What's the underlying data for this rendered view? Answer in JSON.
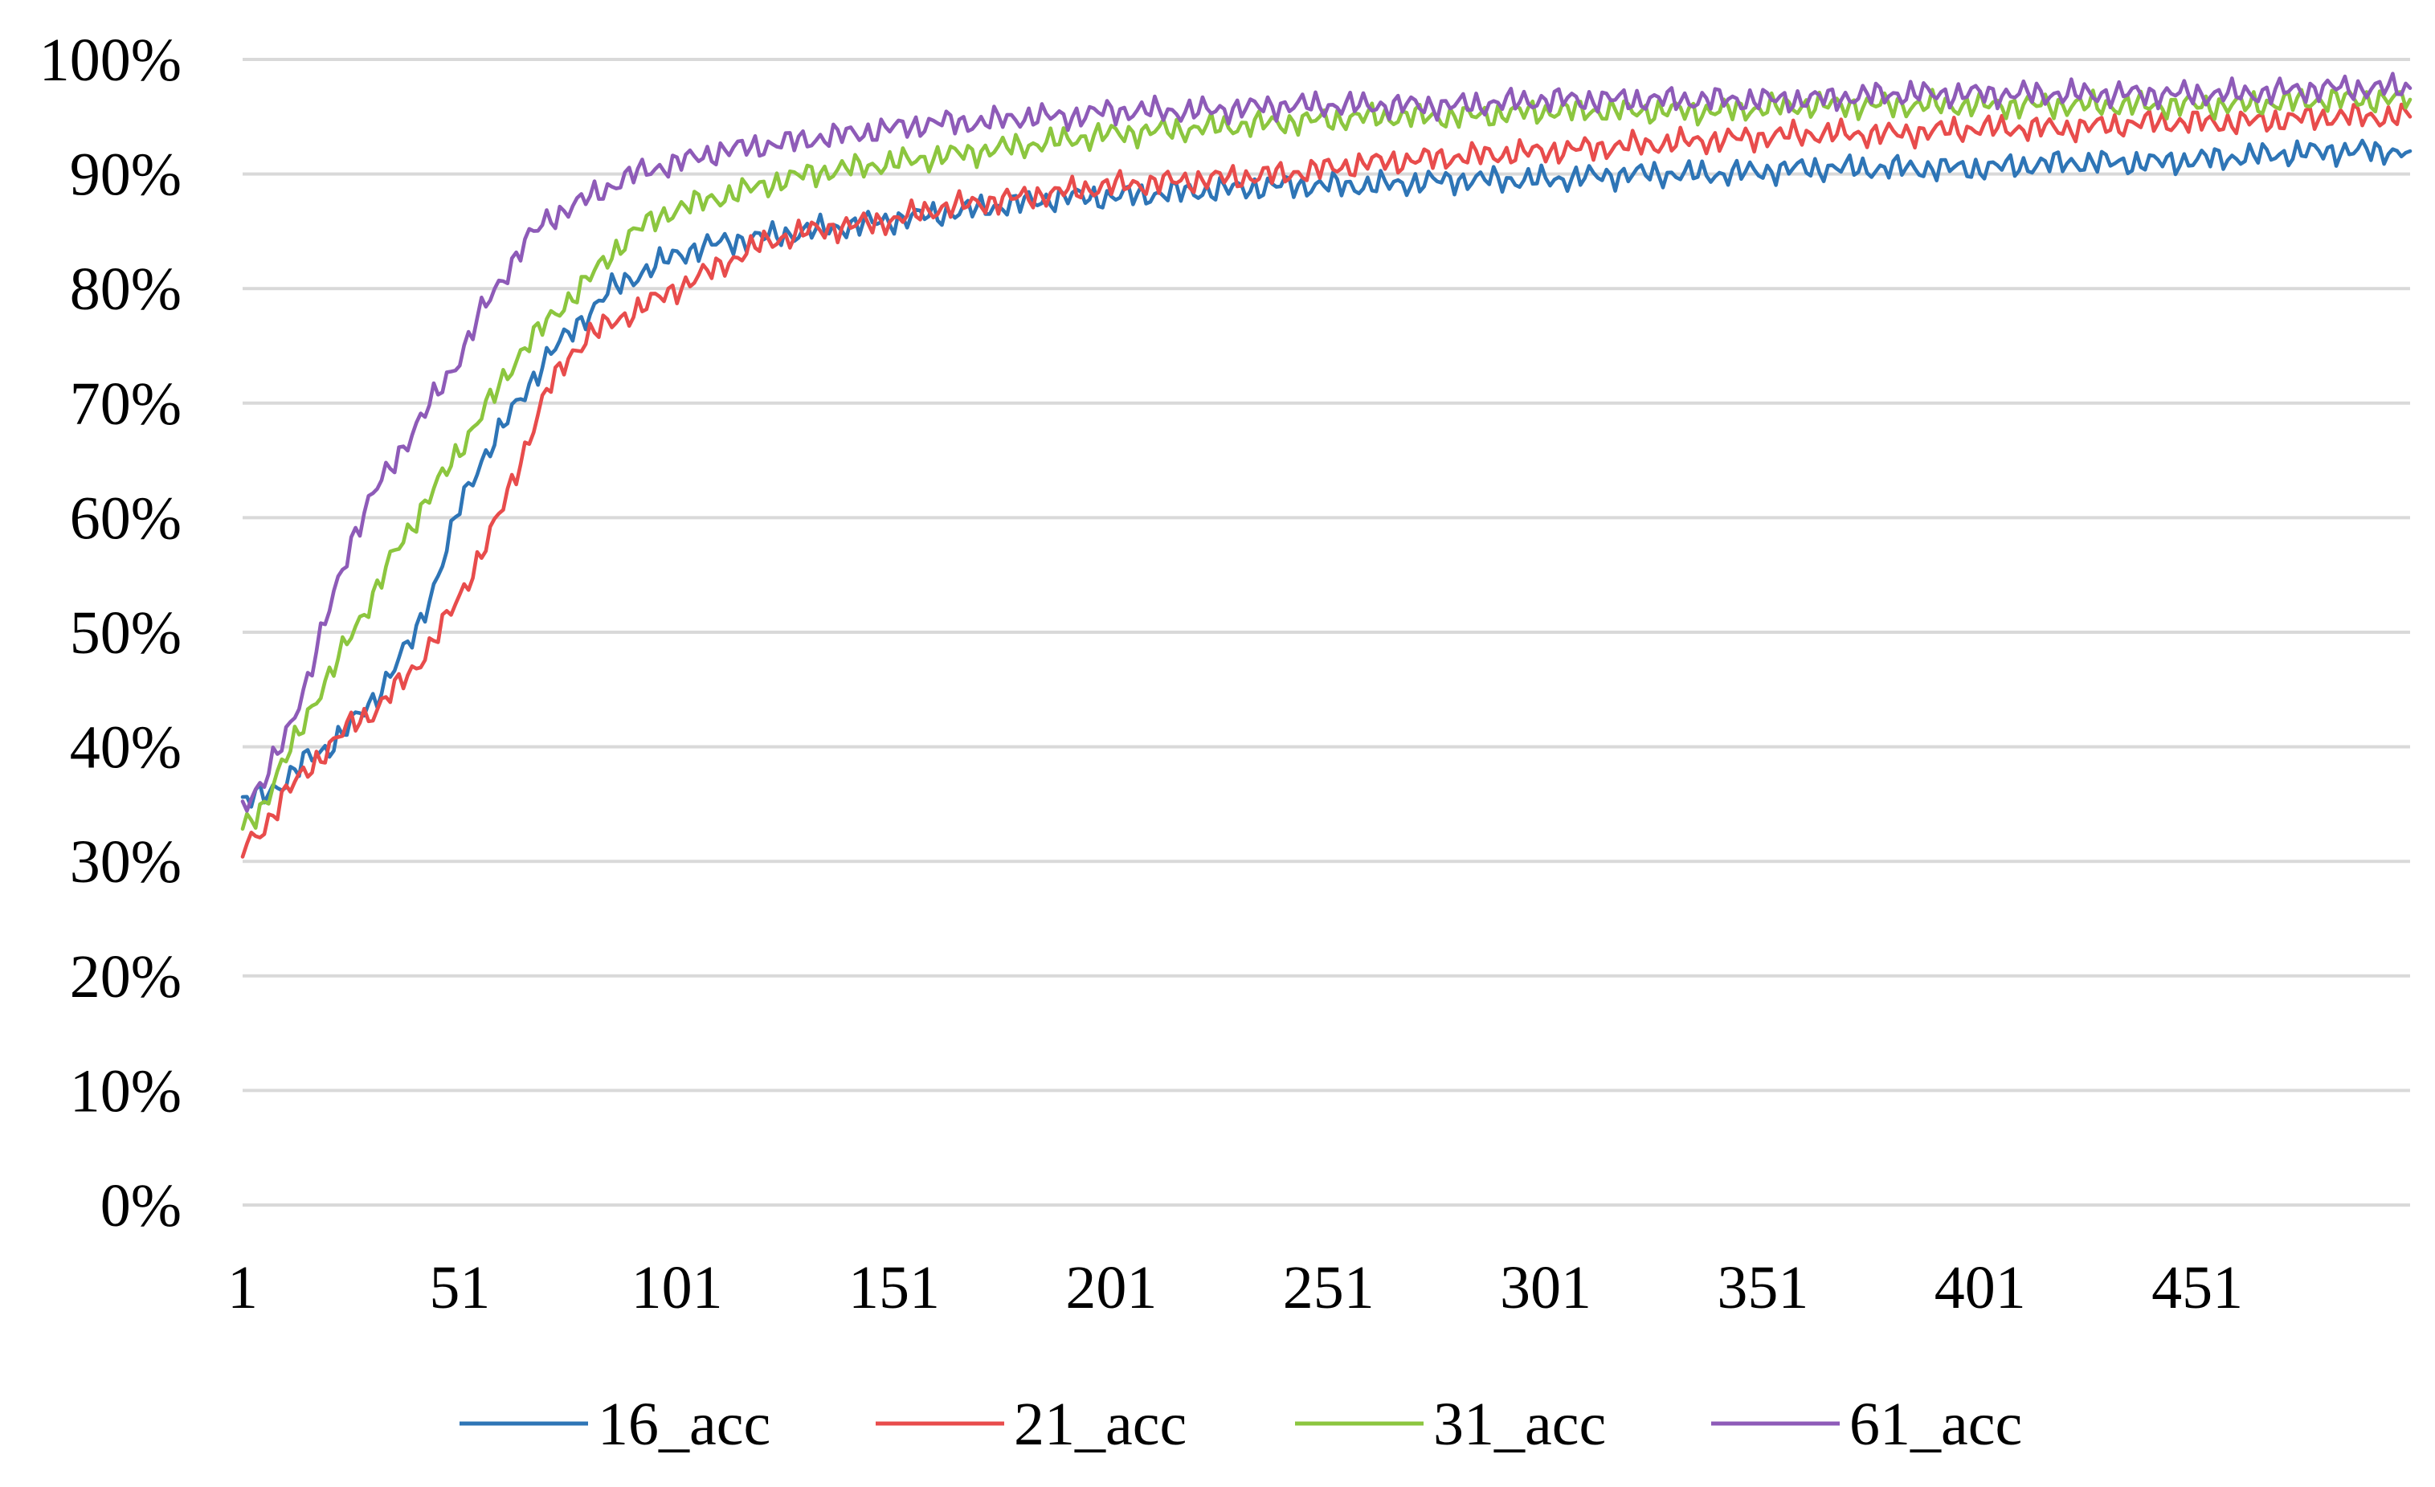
{
  "chart_data": {
    "type": "line",
    "title": "",
    "xlabel": "",
    "ylabel": "",
    "x_range": [
      1,
      500
    ],
    "x_ticks": [
      "1",
      "51",
      "101",
      "151",
      "201",
      "251",
      "301",
      "351",
      "401",
      "451"
    ],
    "x_tick_values": [
      1,
      51,
      101,
      151,
      201,
      251,
      301,
      351,
      401,
      451
    ],
    "ylim": [
      0,
      1
    ],
    "y_ticks": [
      "0%",
      "10%",
      "20%",
      "30%",
      "40%",
      "50%",
      "60%",
      "70%",
      "80%",
      "90%",
      "100%"
    ],
    "y_tick_values": [
      0,
      0.1,
      0.2,
      0.3,
      0.4,
      0.5,
      0.6,
      0.7,
      0.8,
      0.9,
      1.0
    ],
    "grid": "horizontal",
    "legend_position": "bottom",
    "series": [
      {
        "name": "16_acc",
        "color": "#2E75B6",
        "x": [
          1,
          6,
          11,
          16,
          21,
          26,
          31,
          36,
          41,
          46,
          51,
          56,
          61,
          66,
          71,
          76,
          81,
          86,
          91,
          96,
          101,
          111,
          121,
          131,
          141,
          151,
          161,
          171,
          181,
          191,
          201,
          221,
          241,
          261,
          281,
          301,
          321,
          341,
          361,
          381,
          401,
          421,
          441,
          461,
          481,
          500
        ],
        "y": [
          0.35,
          0.36,
          0.37,
          0.39,
          0.4,
          0.42,
          0.44,
          0.47,
          0.5,
          0.55,
          0.61,
          0.65,
          0.68,
          0.71,
          0.74,
          0.76,
          0.78,
          0.8,
          0.81,
          0.82,
          0.83,
          0.84,
          0.845,
          0.85,
          0.855,
          0.86,
          0.865,
          0.87,
          0.875,
          0.88,
          0.88,
          0.885,
          0.89,
          0.89,
          0.895,
          0.895,
          0.9,
          0.9,
          0.905,
          0.905,
          0.905,
          0.91,
          0.91,
          0.915,
          0.92,
          0.92
        ]
      },
      {
        "name": "21_acc",
        "color": "#E84C4C",
        "x": [
          1,
          6,
          11,
          16,
          21,
          26,
          31,
          36,
          41,
          46,
          51,
          56,
          61,
          66,
          71,
          76,
          81,
          86,
          91,
          96,
          101,
          111,
          121,
          131,
          141,
          151,
          161,
          171,
          181,
          191,
          201,
          221,
          241,
          261,
          281,
          301,
          321,
          341,
          361,
          381,
          401,
          421,
          441,
          461,
          481,
          500
        ],
        "y": [
          0.31,
          0.33,
          0.36,
          0.38,
          0.4,
          0.42,
          0.43,
          0.45,
          0.47,
          0.5,
          0.53,
          0.57,
          0.61,
          0.66,
          0.71,
          0.74,
          0.76,
          0.77,
          0.78,
          0.79,
          0.8,
          0.82,
          0.84,
          0.85,
          0.855,
          0.86,
          0.87,
          0.875,
          0.88,
          0.885,
          0.89,
          0.895,
          0.9,
          0.91,
          0.915,
          0.92,
          0.925,
          0.93,
          0.935,
          0.935,
          0.94,
          0.94,
          0.945,
          0.945,
          0.95,
          0.95
        ]
      },
      {
        "name": "31_acc",
        "color": "#8CC63F",
        "x": [
          1,
          6,
          11,
          16,
          21,
          26,
          31,
          36,
          41,
          46,
          51,
          56,
          61,
          66,
          71,
          76,
          81,
          86,
          91,
          96,
          101,
          111,
          121,
          131,
          141,
          151,
          161,
          171,
          181,
          191,
          201,
          221,
          241,
          261,
          281,
          301,
          321,
          341,
          361,
          381,
          401,
          421,
          441,
          461,
          481,
          500
        ],
        "y": [
          0.33,
          0.35,
          0.39,
          0.43,
          0.46,
          0.5,
          0.53,
          0.57,
          0.6,
          0.63,
          0.66,
          0.69,
          0.72,
          0.75,
          0.77,
          0.79,
          0.81,
          0.83,
          0.85,
          0.86,
          0.87,
          0.88,
          0.89,
          0.9,
          0.905,
          0.91,
          0.915,
          0.92,
          0.925,
          0.93,
          0.935,
          0.94,
          0.945,
          0.95,
          0.95,
          0.955,
          0.955,
          0.955,
          0.96,
          0.96,
          0.96,
          0.96,
          0.96,
          0.96,
          0.965,
          0.965
        ]
      },
      {
        "name": "61_acc",
        "color": "#8E5BB8",
        "x": [
          1,
          6,
          11,
          16,
          21,
          26,
          31,
          36,
          41,
          46,
          51,
          56,
          61,
          66,
          71,
          76,
          81,
          86,
          91,
          96,
          101,
          111,
          121,
          131,
          141,
          151,
          161,
          171,
          181,
          191,
          201,
          221,
          241,
          261,
          281,
          301,
          321,
          341,
          361,
          381,
          401,
          421,
          441,
          461,
          481,
          500
        ],
        "y": [
          0.35,
          0.37,
          0.41,
          0.46,
          0.52,
          0.58,
          0.62,
          0.65,
          0.68,
          0.71,
          0.74,
          0.78,
          0.81,
          0.84,
          0.86,
          0.87,
          0.88,
          0.89,
          0.9,
          0.905,
          0.91,
          0.92,
          0.925,
          0.93,
          0.935,
          0.94,
          0.945,
          0.945,
          0.95,
          0.95,
          0.955,
          0.955,
          0.96,
          0.96,
          0.96,
          0.965,
          0.965,
          0.965,
          0.965,
          0.97,
          0.97,
          0.97,
          0.97,
          0.97,
          0.975,
          0.975
        ]
      }
    ]
  }
}
